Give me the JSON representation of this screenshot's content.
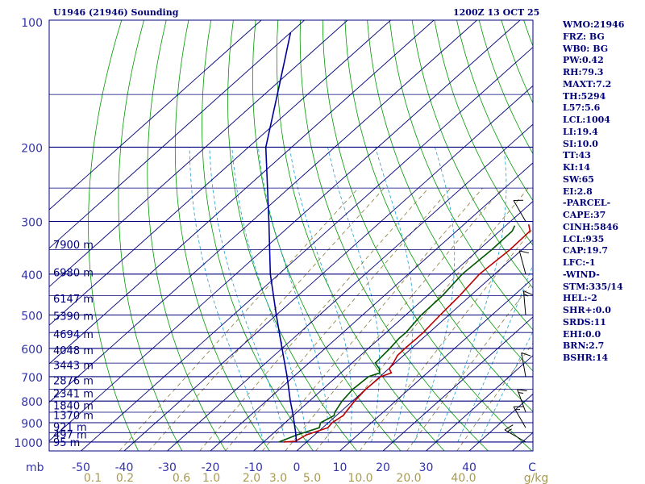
{
  "chart_data": {
    "type": "line",
    "title_left": "U1946 (21946) Sounding",
    "title_right": "1200Z 13 OCT 25",
    "pressure_unit_label": "mb",
    "pressure_levels": [
      "100",
      "200",
      "300",
      "400",
      "500",
      "600",
      "700",
      "800",
      "900",
      "1000"
    ],
    "temperature_axis_labels": [
      "-50",
      "-40",
      "-30",
      "-20",
      "-10",
      "0",
      "10",
      "20",
      "30",
      "40",
      "C"
    ],
    "mixing_ratio_labels": [
      "0.1",
      "0.2",
      "0.6",
      "1.0",
      "2.0",
      "3.0",
      "5.0",
      "10.0",
      "20.0",
      "40.0",
      "g/kg"
    ],
    "mixing_ratio_values": [
      0.1,
      0.2,
      0.6,
      1.0,
      2.0,
      3.0,
      5.0,
      10.0,
      20.0,
      40.0
    ],
    "height_labels": [
      {
        "p": 340,
        "label": "7900 m"
      },
      {
        "p": 396,
        "label": "6980 m"
      },
      {
        "p": 457,
        "label": "6147 m"
      },
      {
        "p": 502,
        "label": "5390 m"
      },
      {
        "p": 554,
        "label": "4694 m"
      },
      {
        "p": 606,
        "label": "4048 m"
      },
      {
        "p": 657,
        "label": "3443 m"
      },
      {
        "p": 714,
        "label": "2876 m"
      },
      {
        "p": 766,
        "label": "2341 m"
      },
      {
        "p": 818,
        "label": "1840 m"
      },
      {
        "p": 864,
        "label": "1370 m"
      },
      {
        "p": 920,
        "label": "921 m"
      },
      {
        "p": 960,
        "label": "497 m"
      },
      {
        "p": 1000,
        "label": "95 m"
      }
    ],
    "series": [
      {
        "name": "Temperature",
        "color": "#bb0000",
        "points": [
          [
            1000,
            -5.3
          ],
          [
            996,
            -2.8
          ],
          [
            962,
            -1.9
          ],
          [
            925,
            1.2
          ],
          [
            900,
            0.9
          ],
          [
            866,
            1.6
          ],
          [
            850,
            1.3
          ],
          [
            800,
            0.5
          ],
          [
            750,
            0.0
          ],
          [
            700,
            0.2
          ],
          [
            686,
            1.7
          ],
          [
            670,
            0.1
          ],
          [
            650,
            -0.4
          ],
          [
            624,
            -1.4
          ],
          [
            600,
            -1.5
          ],
          [
            568,
            -1.4
          ],
          [
            550,
            -1.4
          ],
          [
            500,
            -2.0
          ],
          [
            450,
            -2.5
          ],
          [
            400,
            -3.5
          ],
          [
            350,
            -2.8
          ],
          [
            316,
            -3.0
          ],
          [
            305,
            -5.0
          ]
        ]
      },
      {
        "name": "Dewpoint",
        "color": "#005500",
        "points": [
          [
            1000,
            -6.4
          ],
          [
            996,
            -6.2
          ],
          [
            962,
            -4.1
          ],
          [
            925,
            -0.8
          ],
          [
            900,
            -1.8
          ],
          [
            866,
            -0.5
          ],
          [
            850,
            -1.2
          ],
          [
            800,
            -2.4
          ],
          [
            750,
            -3.0
          ],
          [
            700,
            -2.6
          ],
          [
            686,
            -1.0
          ],
          [
            670,
            -2.2
          ],
          [
            650,
            -4.6
          ],
          [
            600,
            -5.0
          ],
          [
            568,
            -5.5
          ],
          [
            550,
            -5.4
          ],
          [
            500,
            -6.4
          ],
          [
            450,
            -6.5
          ],
          [
            400,
            -7.5
          ],
          [
            350,
            -7.0
          ],
          [
            316,
            -7.1
          ],
          [
            307,
            -7.9
          ]
        ]
      },
      {
        "name": "Parcel",
        "color": "#000099",
        "points": [
          [
            1000,
            -2.4
          ],
          [
            950,
            -5.0
          ],
          [
            900,
            -7.9
          ],
          [
            850,
            -11.0
          ],
          [
            800,
            -14.4
          ],
          [
            700,
            -21.5
          ],
          [
            600,
            -30.0
          ],
          [
            500,
            -40.0
          ],
          [
            400,
            -52.0
          ],
          [
            300,
            -66.0
          ],
          [
            200,
            -86.0
          ],
          [
            150,
            -97.0
          ],
          [
            125,
            -104.0
          ],
          [
            107,
            -110.0
          ]
        ]
      }
    ],
    "wind_barbs": [
      {
        "p": 1000,
        "dir": 300,
        "spd": 15
      },
      {
        "p": 925,
        "dir": 330,
        "spd": 15
      },
      {
        "p": 850,
        "dir": 340,
        "spd": 15
      },
      {
        "p": 700,
        "dir": 350,
        "spd": 10
      },
      {
        "p": 500,
        "dir": 355,
        "spd": 15
      },
      {
        "p": 400,
        "dir": 345,
        "spd": 10
      },
      {
        "p": 300,
        "dir": 330,
        "spd": 10
      }
    ],
    "indices": [
      "WMO:21946",
      "FRZ: BG",
      "WB0: BG",
      "PW:0.42",
      "RH:79.3",
      "MAXT:7.2",
      "TH:5294",
      "L57:5.6",
      "LCL:1004",
      "LI:19.4",
      "SI:10.0",
      "TT:43",
      "KI:14",
      "SW:65",
      "EI:2.8",
      "-PARCEL-",
      "CAPE:37",
      "CINH:5846",
      "LCL:935",
      "CAP:19.7",
      "LFC:-1",
      "-WIND-",
      "STM:335/14",
      "HEL:-2",
      "SHR+:0.0",
      "SRDS:11",
      "EHI:0.0",
      "BRN:2.7",
      "BSHR:14"
    ],
    "colors": {
      "isobar": "#00007a",
      "isotherm": "#00007a",
      "dry_adiabat": "#009900",
      "moist_adiabat": "#1a9fd0",
      "mixing_ratio": "#8a7a3a",
      "temperature": "#bb0000",
      "dewpoint": "#005500",
      "parcel": "#000099",
      "axis_text": "#3333aa",
      "mixing_text": "#a89a50"
    }
  }
}
